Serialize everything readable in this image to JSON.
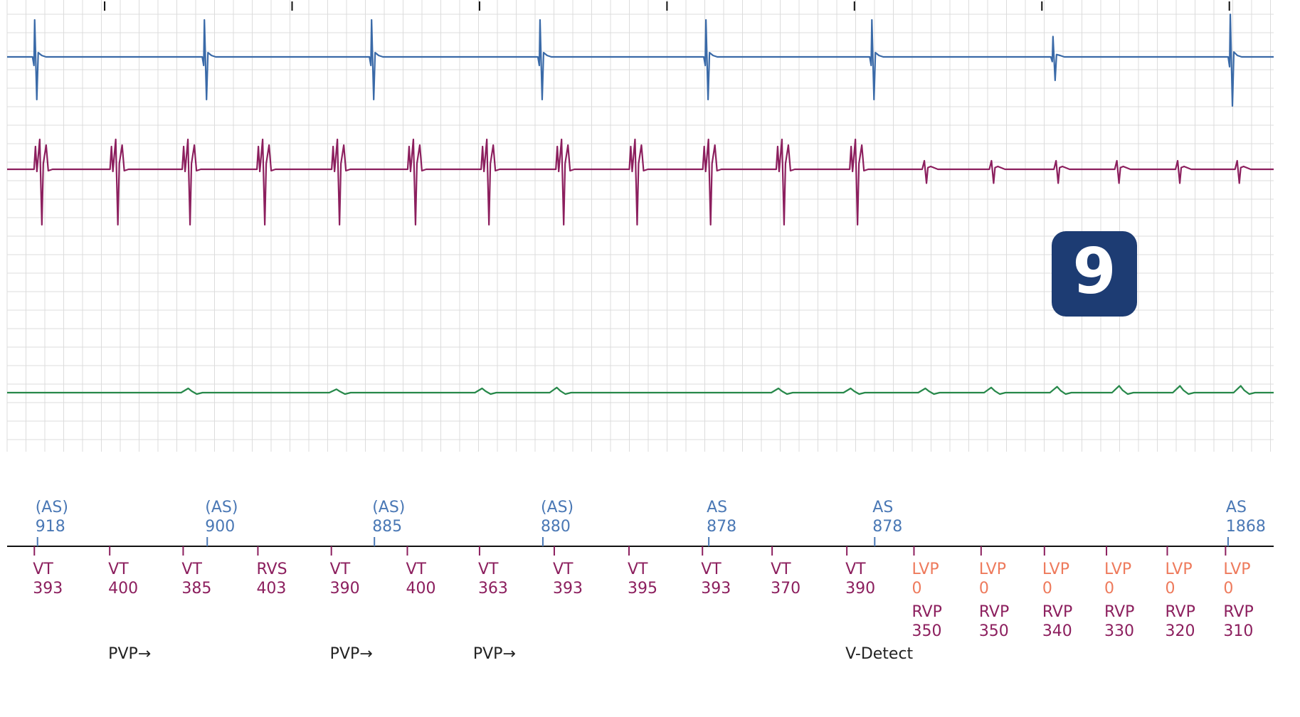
{
  "panel_badge": "9",
  "colors": {
    "atrial_channel": "#3a6aa8",
    "ventricular_channel": "#8c1f5e",
    "shock_channel": "#27884a",
    "atrial_marker": "#4a78b5",
    "ventricular_marker": "#8c1f5e",
    "pacing_marker": "#ee7a5c",
    "badge": "#1d3c73",
    "grid": "#dcdcdc",
    "baseline": "#111111",
    "annotation": "#222222"
  },
  "chart_data": {
    "type": "line",
    "title": "",
    "xlabel": "",
    "ylabel": "",
    "x_range_ms": [
      0,
      10000
    ],
    "series": [
      {
        "channel": "atrial",
        "event_times_ms": [
          240,
          1580,
          2900,
          4230,
          5540,
          6850,
          8280,
          9680
        ],
        "event_amplitude": [
          1,
          1,
          1,
          1,
          1,
          1,
          0.55,
          1.15
        ]
      },
      {
        "channel": "ventricular",
        "event_times_ms": [
          280,
          880,
          1450,
          2040,
          2630,
          3230,
          3810,
          4400,
          4980,
          5560,
          6140,
          6720,
          7270,
          7800,
          8310,
          8790,
          9270,
          9740
        ],
        "event_amplitude": [
          1,
          1,
          1,
          1,
          1,
          1,
          1,
          1,
          1,
          1,
          1,
          1,
          0.3,
          0.3,
          0.3,
          0.3,
          0.3,
          0.3
        ]
      },
      {
        "channel": "far-field",
        "event_times_ms": [
          1430,
          2600,
          3750,
          4340,
          6090,
          6660,
          7250,
          7770,
          8290,
          8780,
          9260,
          9740
        ],
        "event_amplitude": [
          0.5,
          0.4,
          0.5,
          0.6,
          0.5,
          0.5,
          0.5,
          0.6,
          0.7,
          0.8,
          0.8,
          0.8
        ]
      }
    ],
    "atrial_markers": [
      {
        "t": 240,
        "label": "(AS)",
        "interval": "918"
      },
      {
        "t": 1580,
        "label": "(AS)",
        "interval": "900"
      },
      {
        "t": 2900,
        "label": "(AS)",
        "interval": "885"
      },
      {
        "t": 4230,
        "label": "(AS)",
        "interval": "880"
      },
      {
        "t": 5540,
        "label": "AS",
        "interval": "878"
      },
      {
        "t": 6850,
        "label": "AS",
        "interval": "878"
      },
      {
        "t": 9640,
        "label": "AS",
        "interval": "1868"
      }
    ],
    "ventricular_markers": [
      {
        "t": 215,
        "label": "VT",
        "interval": "393"
      },
      {
        "t": 810,
        "label": "VT",
        "interval": "400"
      },
      {
        "t": 1390,
        "label": "VT",
        "interval": "385"
      },
      {
        "t": 1980,
        "label": "RVS",
        "interval": "403"
      },
      {
        "t": 2560,
        "label": "VT",
        "interval": "390"
      },
      {
        "t": 3160,
        "label": "VT",
        "interval": "400"
      },
      {
        "t": 3730,
        "label": "VT",
        "interval": "363"
      },
      {
        "t": 4320,
        "label": "VT",
        "interval": "393"
      },
      {
        "t": 4910,
        "label": "VT",
        "interval": "395"
      },
      {
        "t": 5490,
        "label": "VT",
        "interval": "393"
      },
      {
        "t": 6040,
        "label": "VT",
        "interval": "370"
      },
      {
        "t": 6630,
        "label": "VT",
        "interval": "390"
      }
    ],
    "pacing_markers": [
      {
        "t": 7160,
        "label": "LVP",
        "value": "0",
        "label2": "RVP",
        "value2": "350"
      },
      {
        "t": 7690,
        "label": "LVP",
        "value": "0",
        "label2": "RVP",
        "value2": "350"
      },
      {
        "t": 8190,
        "label": "LVP",
        "value": "0",
        "label2": "RVP",
        "value2": "340"
      },
      {
        "t": 8680,
        "label": "LVP",
        "value": "0",
        "label2": "RVP",
        "value2": "330"
      },
      {
        "t": 9160,
        "label": "LVP",
        "value": "0",
        "label2": "RVP",
        "value2": "320"
      },
      {
        "t": 9620,
        "label": "LVP",
        "value": "0",
        "label2": "RVP",
        "value2": "310"
      }
    ],
    "annotations": [
      {
        "t": 810,
        "text": "PVP→"
      },
      {
        "t": 2560,
        "text": "PVP→"
      },
      {
        "t": 3690,
        "text": "PVP→"
      },
      {
        "t": 6630,
        "text": "V-Detect"
      }
    ],
    "time_ticks_ms": [
      770,
      2250,
      3730,
      5210,
      6690,
      8170,
      9650
    ]
  }
}
